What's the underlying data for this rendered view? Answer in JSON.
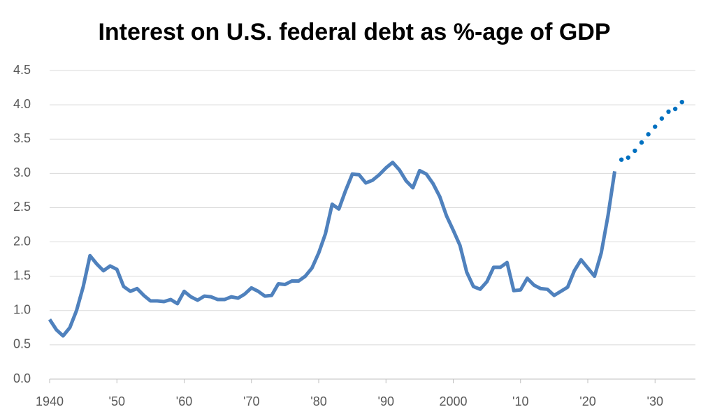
{
  "chart_data": {
    "type": "line",
    "title": "Interest on U.S. federal debt as %-age of GDP",
    "xlim": [
      1940,
      2036
    ],
    "xticks": [
      1940,
      {
        "value": 1950,
        "label": "'50"
      },
      {
        "value": 1960,
        "label": "'60"
      },
      {
        "value": 1970,
        "label": "'70"
      },
      {
        "value": 1980,
        "label": "'80"
      },
      {
        "value": 1990,
        "label": "'90"
      },
      2000,
      {
        "value": 2010,
        "label": "'10"
      },
      {
        "value": 2020,
        "label": "'20"
      },
      {
        "value": 2030,
        "label": "'30"
      }
    ],
    "ylim": [
      0,
      4.5
    ],
    "yticks": [
      {
        "value": 0,
        "label": "0.0"
      },
      0.5,
      {
        "value": 1,
        "label": "1.0"
      },
      1.5,
      {
        "value": 2,
        "label": "2.0"
      },
      2.5,
      {
        "value": 3,
        "label": "3.0"
      },
      3.5,
      {
        "value": 4,
        "label": "4.0"
      },
      4.5
    ],
    "grid": true,
    "series": [
      {
        "color": "#4f81bd",
        "style": "solid",
        "x": [
          1940,
          1941,
          1942,
          1943,
          1944,
          1945,
          1946,
          1947,
          1948,
          1949,
          1950,
          1951,
          1952,
          1953,
          1954,
          1955,
          1956,
          1957,
          1958,
          1959,
          1960,
          1961,
          1962,
          1963,
          1964,
          1965,
          1966,
          1967,
          1968,
          1969,
          1970,
          1971,
          1972,
          1973,
          1974,
          1975,
          1976,
          1977,
          1978,
          1979,
          1980,
          1981,
          1982,
          1983,
          1984,
          1985,
          1986,
          1987,
          1988,
          1989,
          1990,
          1991,
          1992,
          1993,
          1994,
          1995,
          1996,
          1997,
          1998,
          1999,
          2000,
          2001,
          2002,
          2003,
          2004,
          2005,
          2006,
          2007,
          2008,
          2009,
          2010,
          2011,
          2012,
          2013,
          2014,
          2015,
          2016,
          2017,
          2018,
          2019,
          2020,
          2021,
          2022,
          2023,
          2024
        ],
        "values": [
          0.87,
          0.72,
          0.63,
          0.75,
          1.0,
          1.35,
          1.8,
          1.68,
          1.58,
          1.65,
          1.6,
          1.35,
          1.28,
          1.32,
          1.22,
          1.14,
          1.14,
          1.13,
          1.16,
          1.1,
          1.28,
          1.2,
          1.15,
          1.21,
          1.2,
          1.16,
          1.16,
          1.2,
          1.18,
          1.24,
          1.33,
          1.28,
          1.21,
          1.22,
          1.39,
          1.38,
          1.43,
          1.43,
          1.5,
          1.62,
          1.84,
          2.12,
          2.55,
          2.48,
          2.75,
          2.99,
          2.98,
          2.86,
          2.9,
          2.98,
          3.08,
          3.16,
          3.05,
          2.89,
          2.79,
          3.04,
          2.99,
          2.85,
          2.66,
          2.38,
          2.17,
          1.95,
          1.56,
          1.35,
          1.31,
          1.42,
          1.63,
          1.63,
          1.7,
          1.29,
          1.3,
          1.47,
          1.37,
          1.32,
          1.31,
          1.22,
          1.28,
          1.34,
          1.58,
          1.74,
          1.62,
          1.5,
          1.84,
          2.38,
          3.03
        ]
      },
      {
        "color": "#0070c0",
        "style": "dotted",
        "x": [
          2025,
          2026,
          2027,
          2028,
          2029,
          2030,
          2031,
          2032,
          2033,
          2034
        ],
        "values": [
          3.2,
          3.23,
          3.33,
          3.45,
          3.57,
          3.68,
          3.8,
          3.9,
          3.94,
          4.04
        ]
      }
    ]
  }
}
